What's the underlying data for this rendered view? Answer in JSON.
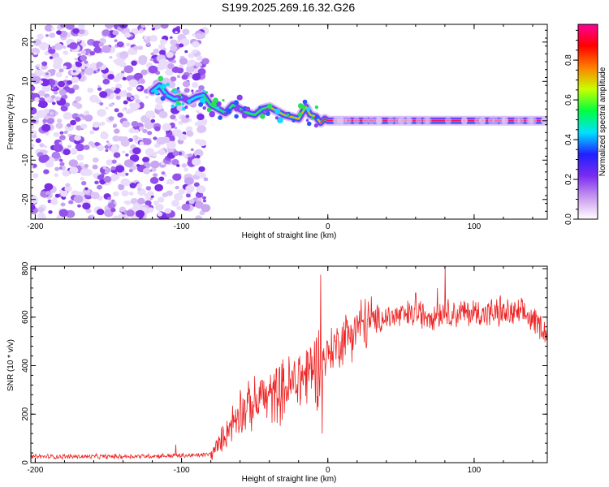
{
  "title": "S199.2025.269.16.32.G26",
  "chart_data": [
    {
      "type": "heatmap",
      "name": "spectrogram",
      "xlabel": "Height of straight line (km)",
      "ylabel": "Frequency (Hz)",
      "xlim": [
        -203,
        150
      ],
      "ylim": [
        -25,
        24.5
      ],
      "xticks": [
        -200,
        -100,
        0,
        100
      ],
      "yticks": [
        -20,
        -10,
        0,
        10,
        20
      ],
      "noise_region_x": [
        -203,
        -83
      ],
      "carrier_track": [
        {
          "x": -120,
          "y": 7.5
        },
        {
          "x": -115,
          "y": 9
        },
        {
          "x": -110,
          "y": 6.5
        },
        {
          "x": -105,
          "y": 5.5
        },
        {
          "x": -100,
          "y": 6
        },
        {
          "x": -95,
          "y": 5
        },
        {
          "x": -90,
          "y": 6
        },
        {
          "x": -85,
          "y": 6.5
        },
        {
          "x": -80,
          "y": 4
        },
        {
          "x": -75,
          "y": 3
        },
        {
          "x": -70,
          "y": 2
        },
        {
          "x": -65,
          "y": 4
        },
        {
          "x": -60,
          "y": 3
        },
        {
          "x": -55,
          "y": 2
        },
        {
          "x": -50,
          "y": 1.5
        },
        {
          "x": -45,
          "y": 3
        },
        {
          "x": -40,
          "y": 3.5
        },
        {
          "x": -35,
          "y": 2.5
        },
        {
          "x": -30,
          "y": 1.5
        },
        {
          "x": -25,
          "y": 1
        },
        {
          "x": -20,
          "y": 0.5
        },
        {
          "x": -15,
          "y": 3.5
        },
        {
          "x": -12,
          "y": 1.5
        },
        {
          "x": -8,
          "y": 1
        },
        {
          "x": -5,
          "y": -0.5
        },
        {
          "x": -2,
          "y": 0.5
        },
        {
          "x": 0,
          "y": 0
        },
        {
          "x": 150,
          "y": 0
        }
      ],
      "colorbar": {
        "label": "Normalized spectral amplitude",
        "ticks": [
          "0.0",
          "0.2",
          "0.4",
          "0.6",
          "0.8"
        ],
        "colors": [
          "#ffffff",
          "#c99af0",
          "#7b2cf0",
          "#2020ff",
          "#00e0ff",
          "#00ff40",
          "#c8ff00",
          "#ff8000",
          "#ff0000",
          "#ff0099"
        ]
      }
    },
    {
      "type": "line",
      "name": "snr",
      "xlabel": "Height of straight line (km)",
      "ylabel": "SNR (10 * v/v)",
      "xlim": [
        -203,
        150
      ],
      "ylim": [
        0,
        810
      ],
      "xticks": [
        -200,
        -100,
        0,
        100
      ],
      "yticks": [
        0,
        200,
        400,
        600,
        800
      ],
      "color": "#ee2222",
      "series": [
        {
          "x": -203,
          "y": 25
        },
        {
          "x": -150,
          "y": 25
        },
        {
          "x": -110,
          "y": 28
        },
        {
          "x": -90,
          "y": 30
        },
        {
          "x": -80,
          "y": 35
        },
        {
          "x": -75,
          "y": 70
        },
        {
          "x": -70,
          "y": 120
        },
        {
          "x": -65,
          "y": 170
        },
        {
          "x": -60,
          "y": 210
        },
        {
          "x": -50,
          "y": 240
        },
        {
          "x": -40,
          "y": 270
        },
        {
          "x": -30,
          "y": 300
        },
        {
          "x": -20,
          "y": 340
        },
        {
          "x": -12,
          "y": 380
        },
        {
          "x": -8,
          "y": 400
        },
        {
          "x": -5,
          "y": 420
        },
        {
          "x": 0,
          "y": 450
        },
        {
          "x": 10,
          "y": 510
        },
        {
          "x": 20,
          "y": 560
        },
        {
          "x": 30,
          "y": 585
        },
        {
          "x": 40,
          "y": 600
        },
        {
          "x": 60,
          "y": 610
        },
        {
          "x": 80,
          "y": 615
        },
        {
          "x": 100,
          "y": 618
        },
        {
          "x": 120,
          "y": 615
        },
        {
          "x": 135,
          "y": 610
        },
        {
          "x": 145,
          "y": 570
        },
        {
          "x": 150,
          "y": 530
        }
      ],
      "spikes": [
        {
          "x": -5,
          "y": 775
        },
        {
          "x": -4,
          "y": 120
        },
        {
          "x": 80,
          "y": 810
        },
        {
          "x": 75,
          "y": 720
        },
        {
          "x": 60,
          "y": 700
        },
        {
          "x": 118,
          "y": 690
        },
        {
          "x": -20,
          "y": 430
        },
        {
          "x": -33,
          "y": 395
        },
        {
          "x": -45,
          "y": 340
        },
        {
          "x": -60,
          "y": 300
        },
        {
          "x": -104,
          "y": 75
        }
      ]
    }
  ]
}
